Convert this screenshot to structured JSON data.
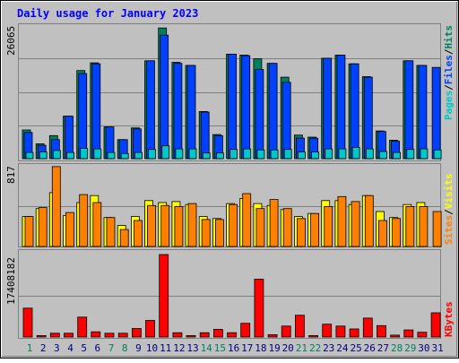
{
  "title": "Daily usage for January 2023",
  "colors": {
    "background": "#c0c0c0",
    "title": "#0000ff",
    "hits": "#00805c",
    "files": "#0040ff",
    "pages": "#00c8c8",
    "visits": "#ffff00",
    "sites": "#ff8000",
    "kbytes": "#ff0000",
    "weekday_label": "#000080",
    "weekend_label": "#00805c"
  },
  "chart_data": [
    {
      "type": "bar",
      "panel": "hits-files-pages",
      "max_label": "26065",
      "ylim": [
        0,
        26065
      ],
      "legend": [
        "Pages",
        "/",
        "Files",
        "/",
        "Hits"
      ],
      "categories": [
        "1",
        "2",
        "3",
        "4",
        "5",
        "6",
        "7",
        "8",
        "9",
        "10",
        "11",
        "12",
        "13",
        "14",
        "15",
        "16",
        "17",
        "18",
        "19",
        "20",
        "21",
        "22",
        "23",
        "24",
        "25",
        "26",
        "27",
        "28",
        "29",
        "30",
        "31"
      ],
      "series": [
        {
          "name": "Hits",
          "values": [
            5600,
            2900,
            4500,
            8300,
            17200,
            18700,
            6200,
            3700,
            6000,
            19100,
            25500,
            18800,
            18200,
            9200,
            4700,
            20400,
            20200,
            19500,
            18600,
            15900,
            4600,
            4200,
            19600,
            20200,
            18500,
            16000,
            5400,
            3600,
            19100,
            18200,
            0
          ]
        },
        {
          "name": "Files",
          "values": [
            5100,
            2600,
            3700,
            8300,
            16600,
            18500,
            6200,
            3700,
            5800,
            19100,
            24100,
            18600,
            18200,
            9100,
            4500,
            20400,
            20100,
            17400,
            18600,
            14900,
            4000,
            4000,
            19600,
            20200,
            18500,
            15900,
            5300,
            3400,
            19100,
            18200,
            17800
          ]
        },
        {
          "name": "Pages",
          "values": [
            1200,
            1300,
            1600,
            1200,
            2000,
            1900,
            1200,
            1000,
            1200,
            1800,
            2500,
            1900,
            1900,
            1100,
            1100,
            1800,
            1900,
            1700,
            1700,
            1800,
            1300,
            1300,
            1900,
            1900,
            2200,
            1900,
            1400,
            1200,
            1800,
            1900,
            1700
          ]
        }
      ]
    },
    {
      "type": "bar",
      "panel": "visits-sites",
      "max_label": "817",
      "ylim": [
        0,
        817
      ],
      "legend": [
        "Sites",
        "/",
        "Visits"
      ],
      "categories": [
        "1",
        "2",
        "3",
        "4",
        "5",
        "6",
        "7",
        "8",
        "9",
        "10",
        "11",
        "12",
        "13",
        "14",
        "15",
        "16",
        "17",
        "18",
        "19",
        "20",
        "21",
        "22",
        "23",
        "24",
        "25",
        "26",
        "27",
        "28",
        "29",
        "30",
        "31"
      ],
      "series": [
        {
          "name": "Visits",
          "values": [
            300,
            380,
            540,
            310,
            440,
            510,
            290,
            210,
            300,
            460,
            440,
            450,
            420,
            300,
            280,
            430,
            480,
            430,
            410,
            370,
            300,
            330,
            460,
            460,
            420,
            510,
            350,
            290,
            420,
            440,
            0
          ]
        },
        {
          "name": "Sites",
          "values": [
            300,
            390,
            800,
            340,
            520,
            440,
            290,
            170,
            260,
            410,
            410,
            400,
            430,
            270,
            270,
            420,
            530,
            380,
            470,
            380,
            280,
            330,
            400,
            500,
            450,
            510,
            260,
            280,
            400,
            400,
            350
          ]
        }
      ]
    },
    {
      "type": "bar",
      "panel": "kbytes",
      "max_label": "17408182",
      "ylim": [
        0,
        17408182
      ],
      "legend": [
        "KBytes"
      ],
      "categories": [
        "1",
        "2",
        "3",
        "4",
        "5",
        "6",
        "7",
        "8",
        "9",
        "10",
        "11",
        "12",
        "13",
        "14",
        "15",
        "16",
        "17",
        "18",
        "19",
        "20",
        "21",
        "22",
        "23",
        "24",
        "25",
        "26",
        "27",
        "28",
        "29",
        "30",
        "31"
      ],
      "series": [
        {
          "name": "KBytes",
          "values": [
            6100000,
            300000,
            800000,
            800000,
            4200000,
            1100000,
            800000,
            800000,
            1800000,
            3500000,
            17400000,
            900000,
            300000,
            900000,
            1600000,
            900000,
            2900000,
            12200000,
            500000,
            2300000,
            4600000,
            300000,
            2700000,
            2300000,
            1700000,
            4000000,
            2400000,
            400000,
            1500000,
            1000000,
            5100000
          ]
        }
      ]
    }
  ],
  "day_labels": [
    "1",
    "2",
    "3",
    "4",
    "5",
    "6",
    "7",
    "8",
    "9",
    "10",
    "11",
    "12",
    "13",
    "14",
    "15",
    "16",
    "17",
    "18",
    "19",
    "20",
    "21",
    "22",
    "23",
    "24",
    "25",
    "26",
    "27",
    "28",
    "29",
    "30",
    "31"
  ],
  "weekend_days": [
    1,
    7,
    8,
    14,
    15,
    21,
    22,
    28,
    29
  ]
}
